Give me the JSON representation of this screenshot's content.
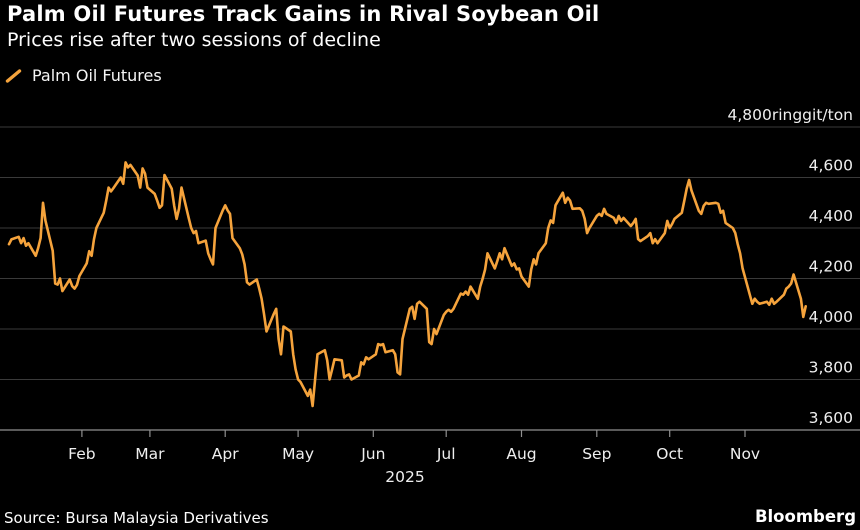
{
  "header": {
    "title": "Palm Oil Futures Track Gains in Rival Soybean Oil",
    "subtitle": "Prices rise after two sessions of decline"
  },
  "legend": {
    "items": [
      {
        "label": "Palm Oil Futures",
        "color": "#F5A33C",
        "swatch": "orange-slash"
      }
    ]
  },
  "footer": {
    "source": "Source: Bursa Malaysia Derivatives",
    "brand": "Bloomberg"
  },
  "colors": {
    "background": "#000000",
    "title_text": "#FFFFFF",
    "axis_label_text": "#EFEFEF",
    "grid": "#3A3A3A",
    "axis": "#909090",
    "line": "#F5A33C"
  },
  "chart_data": {
    "type": "line",
    "title": "Palm Oil Futures Track Gains in Rival Soybean Oil",
    "subtitle": "Prices rise after two sessions of decline",
    "unit": "ringgit/ton",
    "year_label": "2025",
    "ylim": [
      3600,
      4800
    ],
    "y_ticks": [
      3600,
      3800,
      4000,
      4200,
      4400,
      4600,
      4800
    ],
    "y_top_label": "4,800ringgit/ton",
    "x_tick_labels": [
      "Feb",
      "Mar",
      "Apr",
      "May",
      "Jun",
      "Jul",
      "Aug",
      "Sep",
      "Oct",
      "Nov"
    ],
    "grid": "on",
    "legend_position": "top-left",
    "series": [
      {
        "name": "Palm Oil Futures",
        "color": "#F5A33C",
        "points_format": [
          "month",
          "day",
          "price_ringgit_per_ton"
        ],
        "points": [
          [
            1,
            2,
            4336
          ],
          [
            1,
            3,
            4355
          ],
          [
            1,
            6,
            4365
          ],
          [
            1,
            7,
            4340
          ],
          [
            1,
            8,
            4360
          ],
          [
            1,
            9,
            4330
          ],
          [
            1,
            10,
            4340
          ],
          [
            1,
            13,
            4290
          ],
          [
            1,
            14,
            4320
          ],
          [
            1,
            15,
            4360
          ],
          [
            1,
            16,
            4500
          ],
          [
            1,
            17,
            4430
          ],
          [
            1,
            20,
            4310
          ],
          [
            1,
            21,
            4180
          ],
          [
            1,
            22,
            4176
          ],
          [
            1,
            23,
            4200
          ],
          [
            1,
            24,
            4150
          ],
          [
            1,
            27,
            4196
          ],
          [
            1,
            28,
            4170
          ],
          [
            1,
            29,
            4160
          ],
          [
            1,
            30,
            4175
          ],
          [
            1,
            31,
            4210
          ],
          [
            2,
            3,
            4260
          ],
          [
            2,
            4,
            4308
          ],
          [
            2,
            5,
            4290
          ],
          [
            2,
            6,
            4356
          ],
          [
            2,
            7,
            4400
          ],
          [
            2,
            10,
            4460
          ],
          [
            2,
            11,
            4508
          ],
          [
            2,
            12,
            4560
          ],
          [
            2,
            13,
            4545
          ],
          [
            2,
            14,
            4558
          ],
          [
            2,
            17,
            4600
          ],
          [
            2,
            18,
            4575
          ],
          [
            2,
            19,
            4660
          ],
          [
            2,
            20,
            4640
          ],
          [
            2,
            21,
            4650
          ],
          [
            2,
            24,
            4608
          ],
          [
            2,
            25,
            4560
          ],
          [
            2,
            26,
            4636
          ],
          [
            2,
            27,
            4616
          ],
          [
            2,
            28,
            4560
          ],
          [
            3,
            3,
            4535
          ],
          [
            3,
            4,
            4508
          ],
          [
            3,
            5,
            4480
          ],
          [
            3,
            6,
            4490
          ],
          [
            3,
            7,
            4610
          ],
          [
            3,
            10,
            4556
          ],
          [
            3,
            11,
            4488
          ],
          [
            3,
            12,
            4436
          ],
          [
            3,
            13,
            4476
          ],
          [
            3,
            14,
            4560
          ],
          [
            3,
            17,
            4440
          ],
          [
            3,
            18,
            4400
          ],
          [
            3,
            19,
            4380
          ],
          [
            3,
            20,
            4388
          ],
          [
            3,
            21,
            4340
          ],
          [
            3,
            24,
            4350
          ],
          [
            3,
            25,
            4300
          ],
          [
            3,
            26,
            4276
          ],
          [
            3,
            27,
            4256
          ],
          [
            3,
            28,
            4400
          ],
          [
            3,
            31,
            4470
          ],
          [
            4,
            1,
            4490
          ],
          [
            4,
            2,
            4470
          ],
          [
            4,
            3,
            4456
          ],
          [
            4,
            4,
            4360
          ],
          [
            4,
            7,
            4320
          ],
          [
            4,
            8,
            4296
          ],
          [
            4,
            9,
            4256
          ],
          [
            4,
            10,
            4185
          ],
          [
            4,
            11,
            4176
          ],
          [
            4,
            14,
            4196
          ],
          [
            4,
            15,
            4160
          ],
          [
            4,
            16,
            4120
          ],
          [
            4,
            17,
            4060
          ],
          [
            4,
            18,
            3990
          ],
          [
            4,
            21,
            4060
          ],
          [
            4,
            22,
            4080
          ],
          [
            4,
            23,
            3960
          ],
          [
            4,
            24,
            3900
          ],
          [
            4,
            25,
            4010
          ],
          [
            4,
            28,
            3990
          ],
          [
            4,
            29,
            3900
          ],
          [
            4,
            30,
            3840
          ],
          [
            5,
            1,
            3800
          ],
          [
            5,
            2,
            3790
          ],
          [
            5,
            5,
            3735
          ],
          [
            5,
            6,
            3760
          ],
          [
            5,
            7,
            3695
          ],
          [
            5,
            8,
            3800
          ],
          [
            5,
            9,
            3900
          ],
          [
            5,
            12,
            3916
          ],
          [
            5,
            13,
            3876
          ],
          [
            5,
            14,
            3800
          ],
          [
            5,
            15,
            3840
          ],
          [
            5,
            16,
            3880
          ],
          [
            5,
            19,
            3876
          ],
          [
            5,
            20,
            3808
          ],
          [
            5,
            21,
            3816
          ],
          [
            5,
            22,
            3820
          ],
          [
            5,
            23,
            3800
          ],
          [
            5,
            26,
            3816
          ],
          [
            5,
            27,
            3868
          ],
          [
            5,
            28,
            3860
          ],
          [
            5,
            29,
            3888
          ],
          [
            5,
            30,
            3880
          ],
          [
            6,
            2,
            3900
          ],
          [
            6,
            3,
            3940
          ],
          [
            6,
            4,
            3936
          ],
          [
            6,
            5,
            3940
          ],
          [
            6,
            6,
            3908
          ],
          [
            6,
            9,
            3916
          ],
          [
            6,
            10,
            3900
          ],
          [
            6,
            11,
            3828
          ],
          [
            6,
            12,
            3820
          ],
          [
            6,
            13,
            3960
          ],
          [
            6,
            16,
            4080
          ],
          [
            6,
            17,
            4088
          ],
          [
            6,
            18,
            4040
          ],
          [
            6,
            19,
            4100
          ],
          [
            6,
            20,
            4108
          ],
          [
            6,
            23,
            4080
          ],
          [
            6,
            24,
            3948
          ],
          [
            6,
            25,
            3940
          ],
          [
            6,
            26,
            4000
          ],
          [
            6,
            27,
            3980
          ],
          [
            6,
            30,
            4056
          ],
          [
            7,
            1,
            4068
          ],
          [
            7,
            2,
            4076
          ],
          [
            7,
            3,
            4068
          ],
          [
            7,
            4,
            4080
          ],
          [
            7,
            7,
            4140
          ],
          [
            7,
            8,
            4136
          ],
          [
            7,
            9,
            4148
          ],
          [
            7,
            10,
            4136
          ],
          [
            7,
            11,
            4168
          ],
          [
            7,
            14,
            4120
          ],
          [
            7,
            15,
            4168
          ],
          [
            7,
            16,
            4200
          ],
          [
            7,
            17,
            4236
          ],
          [
            7,
            18,
            4300
          ],
          [
            7,
            21,
            4240
          ],
          [
            7,
            22,
            4268
          ],
          [
            7,
            23,
            4300
          ],
          [
            7,
            24,
            4276
          ],
          [
            7,
            25,
            4320
          ],
          [
            7,
            28,
            4250
          ],
          [
            7,
            29,
            4260
          ],
          [
            7,
            30,
            4236
          ],
          [
            7,
            31,
            4240
          ],
          [
            8,
            1,
            4208
          ],
          [
            8,
            4,
            4168
          ],
          [
            8,
            5,
            4236
          ],
          [
            8,
            6,
            4276
          ],
          [
            8,
            7,
            4256
          ],
          [
            8,
            8,
            4300
          ],
          [
            8,
            11,
            4340
          ],
          [
            8,
            12,
            4400
          ],
          [
            8,
            13,
            4430
          ],
          [
            8,
            14,
            4420
          ],
          [
            8,
            15,
            4490
          ],
          [
            8,
            18,
            4540
          ],
          [
            8,
            19,
            4500
          ],
          [
            8,
            20,
            4520
          ],
          [
            8,
            21,
            4508
          ],
          [
            8,
            22,
            4476
          ],
          [
            8,
            25,
            4478
          ],
          [
            8,
            26,
            4468
          ],
          [
            8,
            27,
            4436
          ],
          [
            8,
            28,
            4380
          ],
          [
            8,
            29,
            4400
          ],
          [
            9,
            1,
            4448
          ],
          [
            9,
            2,
            4456
          ],
          [
            9,
            3,
            4448
          ],
          [
            9,
            4,
            4476
          ],
          [
            9,
            5,
            4456
          ],
          [
            9,
            8,
            4440
          ],
          [
            9,
            9,
            4420
          ],
          [
            9,
            10,
            4448
          ],
          [
            9,
            11,
            4428
          ],
          [
            9,
            12,
            4440
          ],
          [
            9,
            15,
            4408
          ],
          [
            9,
            16,
            4420
          ],
          [
            9,
            17,
            4436
          ],
          [
            9,
            18,
            4356
          ],
          [
            9,
            19,
            4348
          ],
          [
            9,
            22,
            4368
          ],
          [
            9,
            23,
            4380
          ],
          [
            9,
            24,
            4340
          ],
          [
            9,
            25,
            4356
          ],
          [
            9,
            26,
            4340
          ],
          [
            9,
            29,
            4380
          ],
          [
            9,
            30,
            4428
          ],
          [
            10,
            1,
            4400
          ],
          [
            10,
            2,
            4416
          ],
          [
            10,
            3,
            4436
          ],
          [
            10,
            6,
            4460
          ],
          [
            10,
            7,
            4508
          ],
          [
            10,
            8,
            4556
          ],
          [
            10,
            9,
            4590
          ],
          [
            10,
            10,
            4548
          ],
          [
            10,
            13,
            4468
          ],
          [
            10,
            14,
            4456
          ],
          [
            10,
            15,
            4488
          ],
          [
            10,
            16,
            4500
          ],
          [
            10,
            17,
            4496
          ],
          [
            10,
            20,
            4500
          ],
          [
            10,
            21,
            4496
          ],
          [
            10,
            22,
            4460
          ],
          [
            10,
            23,
            4468
          ],
          [
            10,
            24,
            4420
          ],
          [
            10,
            27,
            4400
          ],
          [
            10,
            28,
            4380
          ],
          [
            10,
            29,
            4336
          ],
          [
            10,
            30,
            4300
          ],
          [
            10,
            31,
            4240
          ],
          [
            11,
            3,
            4136
          ],
          [
            11,
            4,
            4100
          ],
          [
            11,
            5,
            4120
          ],
          [
            11,
            6,
            4108
          ],
          [
            11,
            7,
            4100
          ],
          [
            11,
            10,
            4108
          ],
          [
            11,
            11,
            4096
          ],
          [
            11,
            12,
            4120
          ],
          [
            11,
            13,
            4100
          ],
          [
            11,
            14,
            4108
          ],
          [
            11,
            17,
            4136
          ],
          [
            11,
            18,
            4160
          ],
          [
            11,
            19,
            4168
          ],
          [
            11,
            20,
            4180
          ],
          [
            11,
            21,
            4216
          ],
          [
            11,
            24,
            4120
          ],
          [
            11,
            25,
            4048
          ],
          [
            11,
            26,
            4090
          ]
        ]
      }
    ]
  }
}
